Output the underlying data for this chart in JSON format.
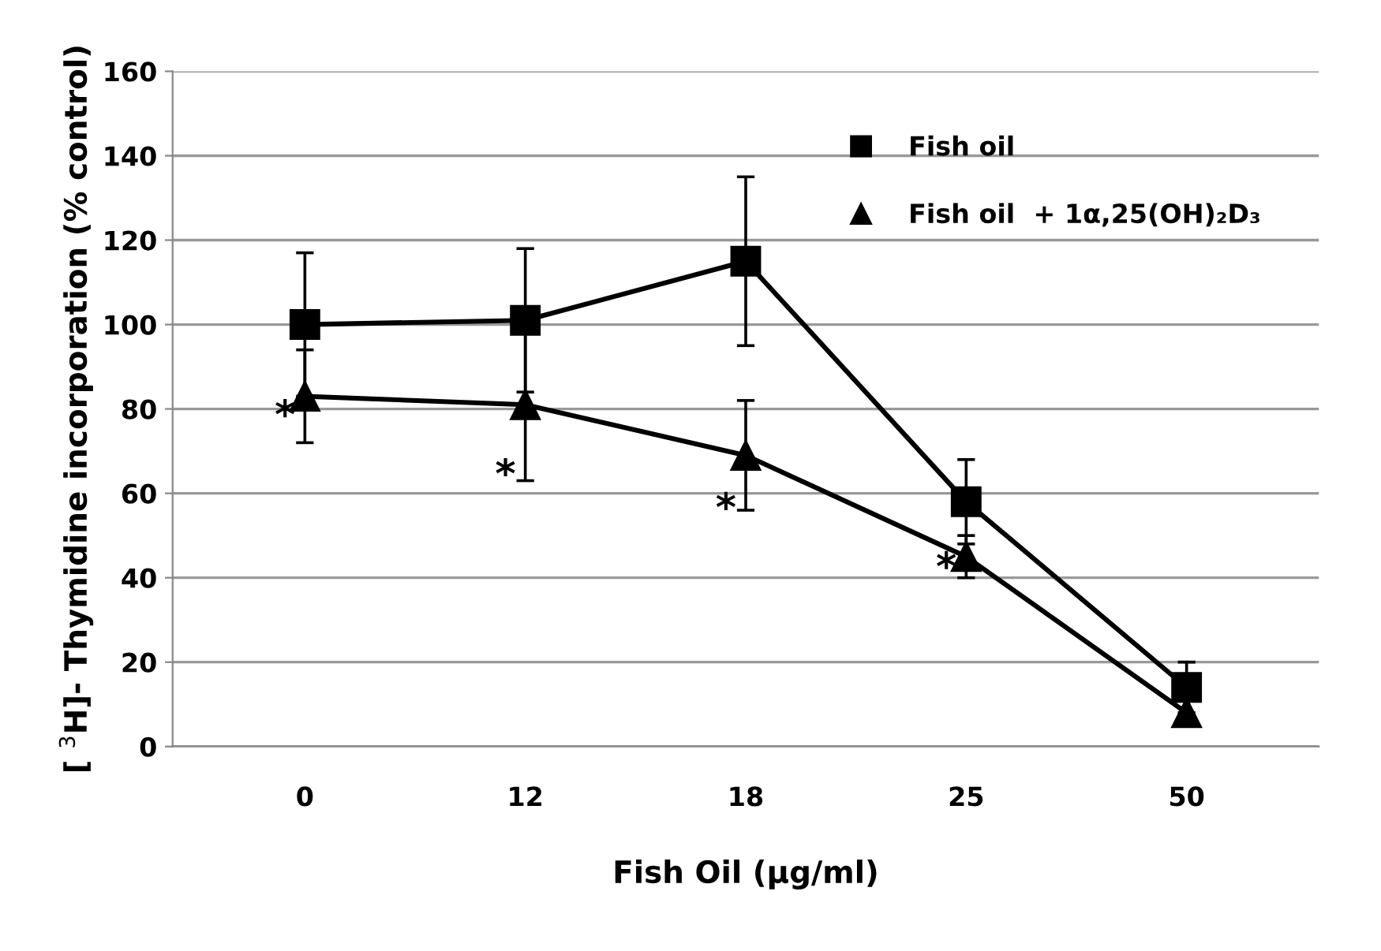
{
  "chart_data": {
    "type": "line",
    "xlabel": "Fish Oil (µg/ml)",
    "ylabel": "[ $^{3}$H]- Thymidine incorporation (% control)",
    "categories": [
      "0",
      "12",
      "18",
      "25",
      "50"
    ],
    "series": [
      {
        "name": "Fish oil",
        "color": "#000000",
        "marker": "square",
        "values": [
          100,
          101,
          115,
          58,
          14
        ],
        "errors": [
          17,
          17,
          20,
          10,
          6
        ]
      },
      {
        "name": "Fish oil  + 1α,25(OH)₂D₃",
        "color": "#000000",
        "marker": "triangle",
        "values": [
          83,
          81,
          69,
          45,
          8
        ],
        "errors": [
          11,
          18,
          13,
          5,
          null
        ]
      }
    ],
    "ylim": [
      0,
      160
    ],
    "yticks": [
      0,
      20,
      40,
      60,
      80,
      100,
      120,
      140,
      160
    ],
    "grid": "y",
    "legend": "top right",
    "line_style": "solid",
    "annotations": [
      {
        "text": "*",
        "x": "0",
        "y": 78
      },
      {
        "text": "*",
        "x": "12",
        "y": 64
      },
      {
        "text": "*",
        "x": "18",
        "y": 56
      },
      {
        "text": "*",
        "x": "25",
        "y": 42
      }
    ]
  }
}
